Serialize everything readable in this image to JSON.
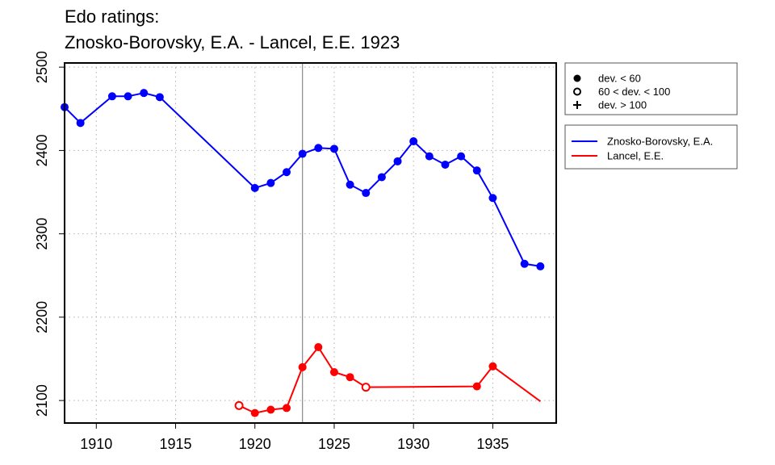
{
  "chart_data": {
    "type": "line",
    "title_lines": [
      "Edo ratings:",
      "Znosko-Borovsky, E.A. - Lancel, E.E. 1923"
    ],
    "xlabel": "",
    "ylabel": "",
    "xlim": [
      1908,
      1939
    ],
    "ylim": [
      2073,
      2505
    ],
    "x_ticks": [
      1910,
      1915,
      1920,
      1925,
      1930,
      1935
    ],
    "y_ticks": [
      2100,
      2200,
      2300,
      2400,
      2500
    ],
    "grid": true,
    "marker_line_year": 1923,
    "legend_markers": [
      {
        "marker": "filled-circle",
        "label": "dev. < 60"
      },
      {
        "marker": "open-circle",
        "label": "60 < dev. < 100"
      },
      {
        "marker": "plus",
        "label": "dev. > 100"
      }
    ],
    "series": [
      {
        "name": "Znosko-Borovsky, E.A.",
        "color": "#0000ff",
        "points": [
          {
            "x": 1908,
            "y": 2452,
            "marker": "filled-circle"
          },
          {
            "x": 1909,
            "y": 2433,
            "marker": "filled-circle"
          },
          {
            "x": 1911,
            "y": 2465,
            "marker": "filled-circle"
          },
          {
            "x": 1912,
            "y": 2465,
            "marker": "filled-circle"
          },
          {
            "x": 1913,
            "y": 2469,
            "marker": "filled-circle"
          },
          {
            "x": 1914,
            "y": 2464,
            "marker": "filled-circle"
          },
          {
            "x": 1920,
            "y": 2355,
            "marker": "filled-circle"
          },
          {
            "x": 1921,
            "y": 2361,
            "marker": "filled-circle"
          },
          {
            "x": 1922,
            "y": 2374,
            "marker": "filled-circle"
          },
          {
            "x": 1923,
            "y": 2396,
            "marker": "filled-circle"
          },
          {
            "x": 1924,
            "y": 2403,
            "marker": "filled-circle"
          },
          {
            "x": 1925,
            "y": 2402,
            "marker": "filled-circle"
          },
          {
            "x": 1926,
            "y": 2359,
            "marker": "filled-circle"
          },
          {
            "x": 1927,
            "y": 2349,
            "marker": "filled-circle"
          },
          {
            "x": 1928,
            "y": 2368,
            "marker": "filled-circle"
          },
          {
            "x": 1929,
            "y": 2387,
            "marker": "filled-circle"
          },
          {
            "x": 1930,
            "y": 2411,
            "marker": "filled-circle"
          },
          {
            "x": 1931,
            "y": 2393,
            "marker": "filled-circle"
          },
          {
            "x": 1932,
            "y": 2383,
            "marker": "filled-circle"
          },
          {
            "x": 1933,
            "y": 2393,
            "marker": "filled-circle"
          },
          {
            "x": 1934,
            "y": 2376,
            "marker": "filled-circle"
          },
          {
            "x": 1935,
            "y": 2343,
            "marker": "filled-circle"
          },
          {
            "x": 1937,
            "y": 2264,
            "marker": "filled-circle"
          },
          {
            "x": 1938,
            "y": 2261,
            "marker": "filled-circle"
          }
        ]
      },
      {
        "name": "Lancel, E.E.",
        "color": "#ff0000",
        "points": [
          {
            "x": 1919,
            "y": 2094,
            "marker": "open-circle"
          },
          {
            "x": 1920,
            "y": 2085,
            "marker": "filled-circle"
          },
          {
            "x": 1921,
            "y": 2089,
            "marker": "filled-circle"
          },
          {
            "x": 1922,
            "y": 2091,
            "marker": "filled-circle"
          },
          {
            "x": 1923,
            "y": 2140,
            "marker": "filled-circle"
          },
          {
            "x": 1924,
            "y": 2164,
            "marker": "filled-circle"
          },
          {
            "x": 1925,
            "y": 2134,
            "marker": "filled-circle"
          },
          {
            "x": 1926,
            "y": 2128,
            "marker": "filled-circle"
          },
          {
            "x": 1927,
            "y": 2116,
            "marker": "open-circle"
          },
          {
            "x": 1934,
            "y": 2117,
            "marker": "filled-circle"
          },
          {
            "x": 1935,
            "y": 2141,
            "marker": "filled-circle"
          },
          {
            "x": 1938,
            "y": 2099,
            "marker": "none"
          }
        ]
      }
    ]
  }
}
